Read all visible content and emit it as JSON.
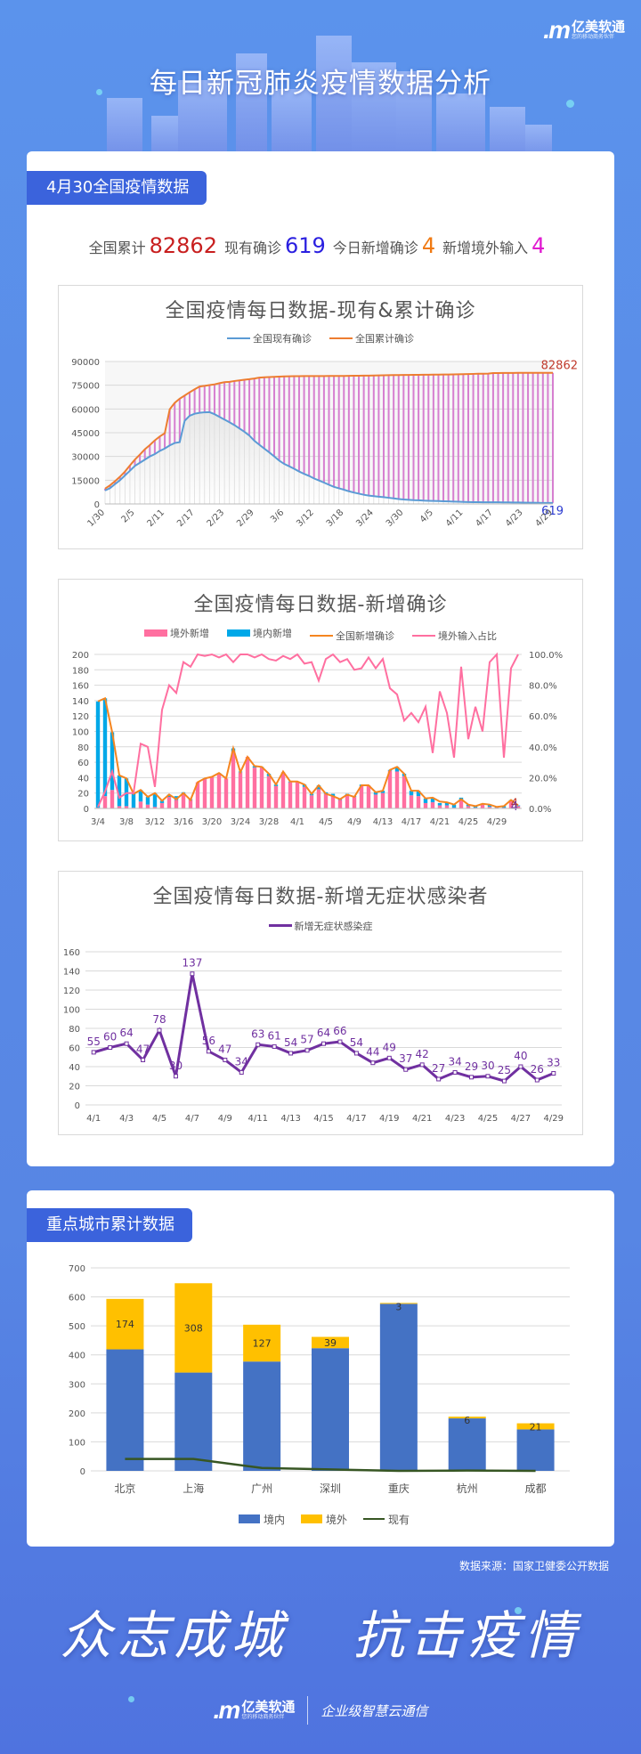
{
  "header": {
    "brand_mark": ".m",
    "brand_name": "亿美软通",
    "brand_sub": "您的移动商务伙伴",
    "title": "每日新冠肺炎疫情数据分析"
  },
  "section1": {
    "tag": "4月30全国疫情数据",
    "stats": [
      {
        "label": "全国累计",
        "value": "82862",
        "color": "#c81e1e"
      },
      {
        "label": "现有确诊",
        "value": "619",
        "color": "#2a1fe0"
      },
      {
        "label": "今日新增确诊",
        "value": "4",
        "color": "#f07a12"
      },
      {
        "label": "新增境外输入",
        "value": "4",
        "color": "#e019d0"
      }
    ]
  },
  "section2": {
    "tag": "重点城市累计数据"
  },
  "footer": {
    "source": "数据来源：国家卫健委公开数据",
    "slogan_a": "众志成城",
    "slogan_b": "抗击疫情",
    "brand_mark": ".m",
    "brand_name": "亿美软通",
    "brand_sub": "您的移动商务伙伴",
    "tagline": "企业级智慧云通信"
  },
  "chart_data": [
    {
      "type": "line",
      "title": "全国疫情每日数据-现有&累计确诊",
      "legend": [
        "全国现有确诊",
        "全国累计确诊"
      ],
      "legend_colors": [
        "#5b9bd5",
        "#ed7d31"
      ],
      "yticks": [
        0,
        15000,
        30000,
        45000,
        60000,
        75000,
        90000
      ],
      "ylim": [
        0,
        90000
      ],
      "xticks": [
        "1/30",
        "2/5",
        "2/11",
        "2/17",
        "2/23",
        "2/29",
        "3/6",
        "3/12",
        "3/18",
        "3/24",
        "3/30",
        "4/5",
        "4/11",
        "4/17",
        "4/23",
        "4/29"
      ],
      "x_range": [
        "1/30",
        "4/29"
      ],
      "annotations": {
        "last_cumulative": "82862",
        "last_current": "619"
      },
      "series": [
        {
          "name": "全国累计确诊",
          "values": [
            9692,
            11791,
            14380,
            17205,
            20438,
            24324,
            28018,
            31161,
            34546,
            37198,
            40171,
            42638,
            44653,
            59804,
            63851,
            66492,
            68500,
            70548,
            72436,
            74185,
            74576,
            75077,
            75550,
            76288,
            76936,
            77150,
            77658,
            78064,
            78497,
            78824,
            79251,
            79824,
            80026,
            80151,
            80270,
            80409,
            80552,
            80651,
            80695,
            80735,
            80754,
            80778,
            80793,
            80813,
            80824,
            80844,
            80860,
            80881,
            80894,
            80928,
            80967,
            81008,
            81054,
            81093,
            81171,
            81218,
            81285,
            81340,
            81394,
            81439,
            81470,
            81518,
            81554,
            81589,
            81620,
            81639,
            81669,
            81708,
            81740,
            81802,
            81865,
            81907,
            81953,
            82052,
            82160,
            82249,
            82295,
            82341,
            82692,
            82719,
            82747,
            82758,
            82788,
            82798,
            82804,
            82816,
            82827,
            82830,
            82836,
            82858,
            82862
          ]
        },
        {
          "name": "全国现有确诊",
          "values": [
            8500,
            10000,
            12500,
            15000,
            18000,
            21000,
            24000,
            26000,
            28000,
            30000,
            31500,
            33500,
            35000,
            37000,
            38500,
            39000,
            52500,
            55700,
            57000,
            57600,
            57900,
            58000,
            56700,
            55000,
            53300,
            51600,
            49800,
            47700,
            45600,
            43200,
            39900,
            37400,
            35000,
            32600,
            30000,
            27400,
            25300,
            23800,
            22200,
            20500,
            19000,
            17700,
            16100,
            14800,
            13500,
            12100,
            10800,
            9900,
            9000,
            8000,
            7200,
            6500,
            5800,
            5300,
            4900,
            4600,
            4300,
            3900,
            3500,
            3100,
            2800,
            2600,
            2400,
            2300,
            2100,
            2000,
            1900,
            1800,
            1700,
            1600,
            1500,
            1400,
            1300,
            1200,
            1100,
            1090,
            1080,
            1060,
            1040,
            1020,
            1000,
            950,
            900,
            880,
            850,
            800,
            760,
            700,
            660,
            640,
            619
          ]
        }
      ]
    },
    {
      "type": "bar",
      "title": "全国疫情每日数据-新增确诊",
      "legend": [
        "境外新增",
        "境内新增",
        "全国新增确诊",
        "境外输入占比"
      ],
      "legend_colors": [
        "#ff6fa0",
        "#00a8e8",
        "#f5851f",
        "#ff6fa0"
      ],
      "yticks": [
        0,
        20,
        40,
        60,
        80,
        100,
        120,
        140,
        160,
        180,
        200
      ],
      "ylim": [
        0,
        200
      ],
      "y2ticks": [
        "0.0%",
        "20.0%",
        "40.0%",
        "60.0%",
        "80.0%",
        "100.0%"
      ],
      "y2lim": [
        0,
        1
      ],
      "xticks": [
        "3/4",
        "3/8",
        "3/12",
        "3/16",
        "3/20",
        "3/24",
        "3/28",
        "4/1",
        "4/5",
        "4/9",
        "4/13",
        "4/17",
        "4/21",
        "4/25",
        "4/29"
      ],
      "x_range": [
        "3/4",
        "4/29"
      ],
      "annotations": {
        "last_total": "4",
        "last_imported": "4"
      },
      "series": [
        {
          "name": "境外新增",
          "values": [
            1,
            16,
            24,
            3,
            3,
            1,
            9,
            5,
            2,
            7,
            15,
            11,
            20,
            11,
            34,
            38,
            41,
            45,
            39,
            74,
            47,
            67,
            53,
            53,
            42,
            29,
            47,
            34,
            35,
            28,
            17,
            25,
            19,
            16,
            11,
            18,
            15,
            29,
            30,
            18,
            20,
            49,
            48,
            42,
            17,
            16,
            7,
            8,
            4,
            4,
            1,
            11,
            3,
            1,
            5,
            2,
            1,
            1,
            10,
            3
          ]
        },
        {
          "name": "境内新增",
          "values": [
            138,
            127,
            75,
            40,
            36,
            18,
            15,
            10,
            18,
            3,
            3,
            5,
            1,
            1,
            0,
            1,
            0,
            1,
            0,
            4,
            1,
            0,
            2,
            1,
            3,
            2,
            0,
            1,
            0,
            3,
            2,
            5,
            2,
            3,
            1,
            1,
            1,
            2,
            0,
            3,
            3,
            1,
            6,
            3,
            6,
            7,
            6,
            6,
            3,
            4,
            4,
            3,
            2,
            2,
            1,
            3,
            1,
            2,
            1,
            1
          ]
        },
        {
          "name": "全国新增确诊",
          "values": [
            139,
            143,
            99,
            43,
            39,
            19,
            24,
            15,
            20,
            10,
            18,
            12,
            20,
            11,
            34,
            39,
            41,
            46,
            39,
            78,
            47,
            67,
            55,
            54,
            45,
            31,
            48,
            35,
            35,
            31,
            19,
            30,
            19,
            16,
            12,
            18,
            15,
            30,
            30,
            21,
            23,
            50,
            54,
            45,
            23,
            23,
            13,
            14,
            9,
            8,
            5,
            12,
            5,
            3,
            6,
            5,
            2,
            3,
            11,
            4
          ]
        },
        {
          "name": "境外输入占比",
          "values": [
            0.01,
            0.11,
            0.24,
            0.07,
            0.1,
            0.1,
            0.42,
            0.4,
            0.14,
            0.64,
            0.8,
            0.75,
            0.95,
            0.92,
            1.0,
            0.99,
            1.0,
            0.98,
            1.0,
            0.95,
            1.0,
            1.0,
            0.98,
            1.0,
            0.97,
            0.96,
            0.99,
            0.97,
            1.0,
            0.94,
            0.95,
            0.83,
            0.97,
            1.0,
            0.95,
            0.97,
            0.9,
            0.91,
            0.98,
            0.91,
            0.97,
            0.78,
            0.74,
            0.57,
            0.62,
            0.56,
            0.66,
            0.36,
            0.76,
            0.62,
            0.33,
            0.92,
            0.45,
            0.66,
            0.5,
            0.95,
            1.0,
            0.33,
            0.91,
            1.0
          ]
        }
      ]
    },
    {
      "type": "line",
      "title": "全国疫情每日数据-新增无症状感染者",
      "legend": [
        "新增无症状感染症"
      ],
      "legend_colors": [
        "#7030a0"
      ],
      "yticks": [
        0,
        20,
        40,
        60,
        80,
        100,
        120,
        140,
        160
      ],
      "ylim": [
        0,
        160
      ],
      "xticks": [
        "4/1",
        "4/3",
        "4/5",
        "4/7",
        "4/9",
        "4/11",
        "4/13",
        "4/15",
        "4/17",
        "4/19",
        "4/21",
        "4/23",
        "4/25",
        "4/27",
        "4/29"
      ],
      "categories": [
        "4/1",
        "4/2",
        "4/3",
        "4/4",
        "4/5",
        "4/6",
        "4/7",
        "4/8",
        "4/9",
        "4/10",
        "4/11",
        "4/12",
        "4/13",
        "4/14",
        "4/15",
        "4/16",
        "4/17",
        "4/18",
        "4/19",
        "4/20",
        "4/21",
        "4/22",
        "4/23",
        "4/24",
        "4/25",
        "4/26",
        "4/27",
        "4/28",
        "4/29"
      ],
      "values": [
        55,
        60,
        64,
        47,
        78,
        30,
        137,
        56,
        47,
        34,
        63,
        61,
        54,
        57,
        64,
        66,
        54,
        44,
        49,
        37,
        42,
        27,
        34,
        29,
        30,
        25,
        40,
        26,
        33
      ]
    },
    {
      "type": "bar",
      "title": "重点城市累计数据",
      "legend": [
        "境内",
        "境外",
        "现有"
      ],
      "legend_colors": [
        "#4472c4",
        "#ffc000",
        "#375623"
      ],
      "yticks": [
        0,
        100,
        200,
        300,
        400,
        500,
        600,
        700
      ],
      "ylim": [
        0,
        700
      ],
      "categories": [
        "北京",
        "上海",
        "广州",
        "深圳",
        "重庆",
        "杭州",
        "成都"
      ],
      "series": [
        {
          "name": "境内",
          "values": [
            419,
            339,
            377,
            423,
            576,
            181,
            143
          ]
        },
        {
          "name": "境外",
          "values": [
            174,
            308,
            127,
            39,
            3,
            6,
            21
          ]
        },
        {
          "name": "现有",
          "values": [
            41,
            41,
            10,
            5,
            0,
            1,
            0
          ]
        }
      ]
    }
  ]
}
